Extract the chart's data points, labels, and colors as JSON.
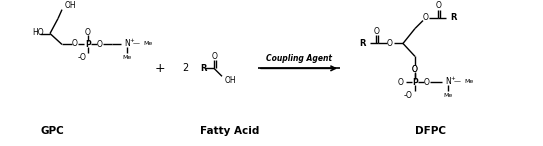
{
  "background_color": "#ffffff",
  "line_color": "#000000",
  "text_color": "#000000",
  "figsize": [
    5.43,
    1.46
  ],
  "dpi": 100,
  "gpc_label": "GPC",
  "fatty_acid_label": "Fatty Acid",
  "dfpc_label": "DFPC",
  "plus_sign": "+",
  "coefficient": "2",
  "arrow_label": "Coupling Agent"
}
